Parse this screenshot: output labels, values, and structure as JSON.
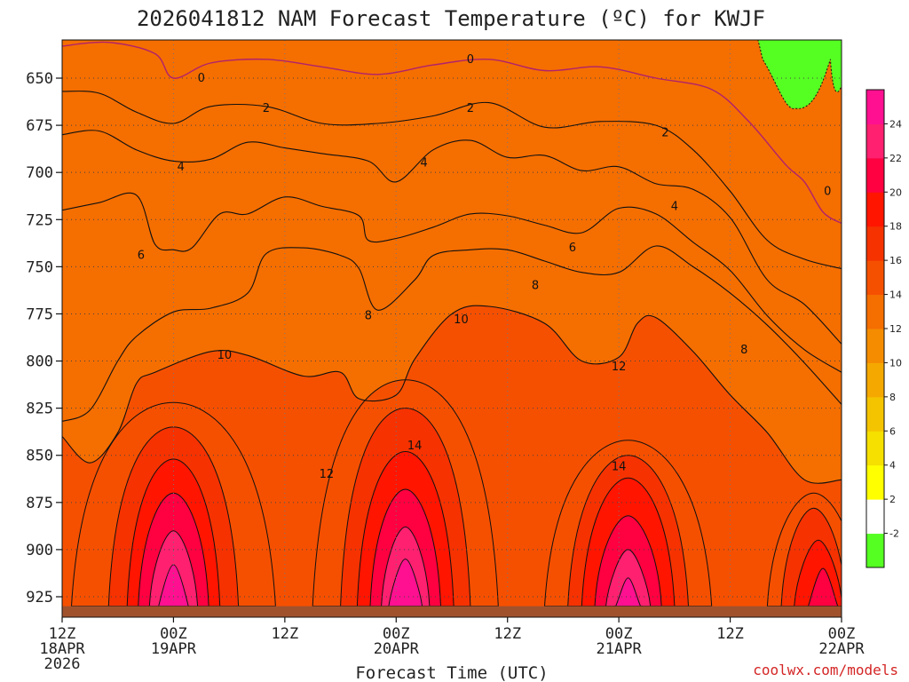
{
  "chart_data": {
    "type": "heatmap",
    "title": "2026041812 NAM Forecast Temperature (ºC) for KWJF",
    "xlabel": "Forecast Time (UTC)",
    "ylabel": "",
    "credit": "coolwx.com/models",
    "y_ticks": [
      "650",
      "675",
      "700",
      "725",
      "750",
      "775",
      "800",
      "825",
      "850",
      "875",
      "900",
      "925"
    ],
    "x_ticks": [
      {
        "hour": 0,
        "line1": "12Z",
        "line2": "18APR",
        "line3": "2026"
      },
      {
        "hour": 12,
        "line1": "00Z",
        "line2": "19APR",
        "line3": ""
      },
      {
        "hour": 24,
        "line1": "12Z",
        "line2": "",
        "line3": ""
      },
      {
        "hour": 36,
        "line1": "00Z",
        "line2": "20APR",
        "line3": ""
      },
      {
        "hour": 48,
        "line1": "12Z",
        "line2": "",
        "line3": ""
      },
      {
        "hour": 60,
        "line1": "00Z",
        "line2": "21APR",
        "line3": ""
      },
      {
        "hour": 72,
        "line1": "12Z",
        "line2": "",
        "line3": ""
      },
      {
        "hour": 84,
        "line1": "00Z",
        "line2": "22APR",
        "line3": ""
      }
    ],
    "colorbar": {
      "levels": [
        "-2",
        "2",
        "4",
        "6",
        "8",
        "10",
        "12",
        "14",
        "16",
        "18",
        "20",
        "22",
        "24"
      ],
      "colors": [
        "#55ff22",
        "#ffffff",
        "#ffff00",
        "#f5e000",
        "#f5c400",
        "#f5a800",
        "#f58c00",
        "#f56e00",
        "#f55000",
        "#f53200",
        "#ff1500",
        "#ff0040",
        "#ff2070",
        "#ff1090"
      ]
    },
    "isotherms": [
      {
        "value": 0,
        "label": "0",
        "color": "#b0226c",
        "points": [
          [
            0,
            633
          ],
          [
            5,
            631
          ],
          [
            10,
            637
          ],
          [
            12,
            650
          ],
          [
            16,
            642
          ],
          [
            22,
            640
          ],
          [
            28,
            644
          ],
          [
            34,
            648
          ],
          [
            40,
            643
          ],
          [
            46,
            640
          ],
          [
            52,
            646
          ],
          [
            58,
            644
          ],
          [
            64,
            650
          ],
          [
            70,
            656
          ],
          [
            74,
            673
          ],
          [
            78,
            696
          ],
          [
            80,
            705
          ],
          [
            82,
            721
          ],
          [
            84,
            727
          ]
        ]
      },
      {
        "value": 2,
        "label": "2",
        "color": "#111111",
        "points": [
          [
            0,
            657
          ],
          [
            4,
            658
          ],
          [
            8,
            668
          ],
          [
            12,
            674
          ],
          [
            16,
            665
          ],
          [
            22,
            665
          ],
          [
            28,
            674
          ],
          [
            34,
            674
          ],
          [
            40,
            670
          ],
          [
            46,
            663
          ],
          [
            52,
            676
          ],
          [
            58,
            673
          ],
          [
            64,
            675
          ],
          [
            68,
            688
          ],
          [
            72,
            710
          ],
          [
            76,
            736
          ],
          [
            80,
            746
          ],
          [
            84,
            751
          ]
        ]
      },
      {
        "value": 4,
        "label": "4",
        "color": "#111111",
        "points": [
          [
            0,
            680
          ],
          [
            4,
            678
          ],
          [
            8,
            688
          ],
          [
            12,
            694
          ],
          [
            16,
            693
          ],
          [
            20,
            684
          ],
          [
            24,
            687
          ],
          [
            28,
            690
          ],
          [
            33,
            694
          ],
          [
            36,
            705
          ],
          [
            40,
            688
          ],
          [
            44,
            683
          ],
          [
            48,
            692
          ],
          [
            52,
            691
          ],
          [
            56,
            699
          ],
          [
            60,
            697
          ],
          [
            64,
            706
          ],
          [
            68,
            709
          ],
          [
            72,
            724
          ],
          [
            76,
            757
          ],
          [
            80,
            770
          ],
          [
            84,
            791
          ]
        ]
      },
      {
        "value": 6,
        "label": "6",
        "color": "#111111",
        "points": [
          [
            0,
            720
          ],
          [
            4,
            716
          ],
          [
            8,
            712
          ],
          [
            10,
            738
          ],
          [
            12,
            741
          ],
          [
            14,
            740
          ],
          [
            17,
            722
          ],
          [
            20,
            722
          ],
          [
            24,
            713
          ],
          [
            28,
            718
          ],
          [
            32,
            723
          ],
          [
            33,
            736
          ],
          [
            36,
            735
          ],
          [
            40,
            729
          ],
          [
            44,
            722
          ],
          [
            48,
            723
          ],
          [
            52,
            728
          ],
          [
            56,
            732
          ],
          [
            60,
            719
          ],
          [
            64,
            722
          ],
          [
            68,
            737
          ],
          [
            72,
            752
          ],
          [
            76,
            776
          ],
          [
            80,
            794
          ],
          [
            84,
            806
          ]
        ]
      },
      {
        "value": 8,
        "label": "8",
        "color": "#111111",
        "points": [
          [
            0,
            832
          ],
          [
            3,
            826
          ],
          [
            6,
            800
          ],
          [
            8,
            787
          ],
          [
            12,
            774
          ],
          [
            16,
            772
          ],
          [
            20,
            764
          ],
          [
            22,
            743
          ],
          [
            26,
            740
          ],
          [
            30,
            744
          ],
          [
            32,
            751
          ],
          [
            34,
            773
          ],
          [
            38,
            757
          ],
          [
            40,
            744
          ],
          [
            44,
            741
          ],
          [
            48,
            741
          ],
          [
            52,
            747
          ],
          [
            56,
            753
          ],
          [
            60,
            753
          ],
          [
            64,
            739
          ],
          [
            68,
            750
          ],
          [
            72,
            764
          ],
          [
            76,
            781
          ],
          [
            80,
            801
          ],
          [
            84,
            823
          ]
        ]
      },
      {
        "value": 10,
        "label": "10",
        "color": "#111111",
        "points": [
          [
            0,
            840
          ],
          [
            3,
            854
          ],
          [
            6,
            838
          ],
          [
            8,
            812
          ],
          [
            10,
            806
          ],
          [
            16,
            795
          ],
          [
            20,
            797
          ],
          [
            26,
            808
          ],
          [
            30,
            806
          ],
          [
            32,
            820
          ],
          [
            36,
            818
          ],
          [
            38,
            799
          ],
          [
            42,
            775
          ],
          [
            46,
            771
          ],
          [
            52,
            780
          ],
          [
            56,
            800
          ],
          [
            60,
            798
          ],
          [
            62,
            780
          ],
          [
            64,
            777
          ],
          [
            68,
            795
          ],
          [
            72,
            818
          ],
          [
            76,
            838
          ],
          [
            80,
            863
          ],
          [
            84,
            863
          ]
        ]
      }
    ],
    "contour_labels": [
      {
        "text": "0",
        "hour": 15,
        "p": 650
      },
      {
        "text": "0",
        "hour": 44,
        "p": 640
      },
      {
        "text": "0",
        "hour": 82.5,
        "p": 710
      },
      {
        "text": "2",
        "hour": 22,
        "p": 666
      },
      {
        "text": "2",
        "hour": 44,
        "p": 666
      },
      {
        "text": "2",
        "hour": 65,
        "p": 679
      },
      {
        "text": "4",
        "hour": 12.8,
        "p": 697
      },
      {
        "text": "4",
        "hour": 39,
        "p": 695
      },
      {
        "text": "4",
        "hour": 66,
        "p": 718
      },
      {
        "text": "6",
        "hour": 8.5,
        "p": 744
      },
      {
        "text": "6",
        "hour": 55,
        "p": 740
      },
      {
        "text": "8",
        "hour": 33,
        "p": 776
      },
      {
        "text": "8",
        "hour": 51,
        "p": 760
      },
      {
        "text": "8",
        "hour": 73.5,
        "p": 794
      },
      {
        "text": "10",
        "hour": 17.5,
        "p": 797
      },
      {
        "text": "10",
        "hour": 43,
        "p": 778
      },
      {
        "text": "12",
        "hour": 28.5,
        "p": 860
      },
      {
        "text": "12",
        "hour": 60,
        "p": 803
      },
      {
        "text": "14",
        "hour": 38,
        "p": 845
      },
      {
        "text": "14",
        "hour": 60,
        "p": 856
      }
    ]
  }
}
